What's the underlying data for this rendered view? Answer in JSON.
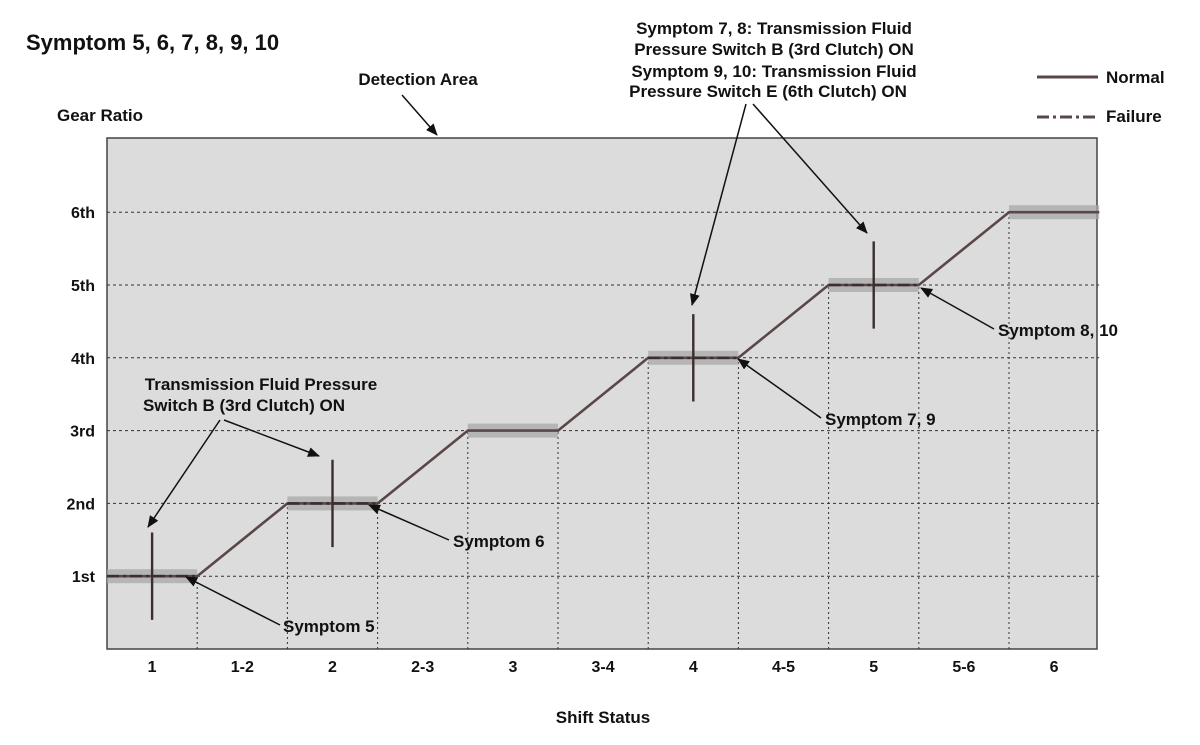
{
  "title": "Symptom 5, 6, 7, 8, 9, 10",
  "detection_area_label": "Detection Area",
  "y_axis_label": "Gear Ratio",
  "x_axis_label": "Shift Status",
  "legend": {
    "normal": "Normal",
    "failure": "Failure"
  },
  "colors": {
    "plot_bg": "#dcdcdc",
    "line": "#5a4848",
    "band": "#a8a8a8",
    "grid": "#333333"
  },
  "chart_data": {
    "type": "line",
    "categories": [
      "1",
      "1-2",
      "2",
      "2-3",
      "3",
      "3-4",
      "4",
      "4-5",
      "5",
      "5-6",
      "6"
    ],
    "y_ticks": [
      "1st",
      "2nd",
      "3rd",
      "4th",
      "5th",
      "6th"
    ],
    "ylim": [
      0,
      7
    ],
    "series": [
      {
        "name": "Normal",
        "style": "solid",
        "points": [
          [
            0,
            1
          ],
          [
            1,
            1
          ],
          [
            2,
            2
          ],
          [
            3,
            2
          ],
          [
            4,
            3
          ],
          [
            5,
            3
          ],
          [
            6,
            4
          ],
          [
            7,
            4
          ],
          [
            8,
            5
          ],
          [
            9,
            5
          ],
          [
            10,
            6
          ],
          [
            11,
            6
          ]
        ]
      },
      {
        "name": "Failure",
        "style": "dash-dot",
        "segments": [
          [
            0,
            1,
            1
          ],
          [
            2,
            3,
            2
          ],
          [
            6,
            7,
            4
          ],
          [
            8,
            9,
            5
          ]
        ]
      }
    ],
    "spikes": [
      {
        "x": 0.5,
        "y_low": 0.4,
        "y_high": 1.6
      },
      {
        "x": 2.5,
        "y_low": 1.4,
        "y_high": 2.6
      },
      {
        "x": 6.5,
        "y_low": 3.4,
        "y_high": 4.6
      },
      {
        "x": 8.5,
        "y_low": 4.4,
        "y_high": 5.6
      }
    ]
  },
  "annotations": {
    "tfps_b_lines": [
      "Transmission Fluid Pressure",
      "Switch B (3rd Clutch) ON"
    ],
    "top_lines": [
      "Symptom 7, 8: Transmission Fluid",
      "Pressure Switch B (3rd Clutch) ON",
      "Symptom 9, 10: Transmission Fluid",
      "Pressure Switch E (6th Clutch) ON"
    ],
    "symptom_5": "Symptom 5",
    "symptom_6": "Symptom 6",
    "symptom_7_9": "Symptom 7, 9",
    "symptom_8_10": "Symptom 8, 10"
  }
}
